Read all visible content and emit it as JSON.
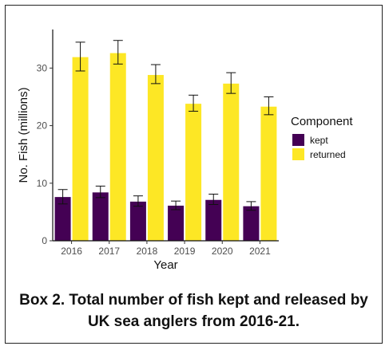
{
  "chart_data": {
    "type": "bar",
    "categories": [
      "2016",
      "2017",
      "2018",
      "2019",
      "2020",
      "2021"
    ],
    "series": [
      {
        "name": "kept",
        "color": "#440154",
        "values": [
          7.6,
          8.4,
          6.8,
          6.1,
          7.1,
          6.0
        ],
        "err_low": [
          6.4,
          7.5,
          6.0,
          5.4,
          6.3,
          5.3
        ],
        "err_high": [
          8.9,
          9.5,
          7.8,
          6.9,
          8.1,
          6.8
        ]
      },
      {
        "name": "returned",
        "color": "#FDE725",
        "values": [
          31.9,
          32.6,
          28.8,
          23.8,
          27.3,
          23.3
        ],
        "err_low": [
          29.5,
          30.7,
          27.3,
          22.5,
          25.6,
          21.9
        ],
        "err_high": [
          34.5,
          34.8,
          30.6,
          25.3,
          29.2,
          25.0
        ]
      }
    ],
    "xlabel": "Year",
    "ylabel": "No. Fish (millions)",
    "yticks": [
      0,
      10,
      20,
      30
    ],
    "ylim": [
      0,
      36.7
    ],
    "legend_title": "Component",
    "legend_position": "right",
    "grid": false
  },
  "caption": {
    "line1": "Box 2. Total number of fish kept and released by",
    "line2": "UK sea anglers from 2016-21."
  }
}
